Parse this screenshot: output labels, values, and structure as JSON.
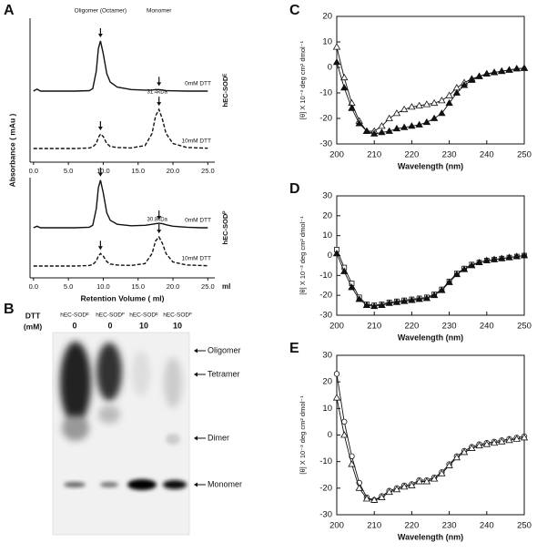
{
  "chart_data": [
    {
      "type": "line",
      "panel": "A",
      "ylabel": "Absorbance ( mAu )",
      "header_labels": [
        "Oligomer (Octamer)",
        "Monomer"
      ],
      "side_label": "hEC-SODᴱ",
      "peak_label": "31.4kDa",
      "x": [
        0,
        0.5,
        1,
        2,
        4,
        6,
        8,
        8.5,
        9,
        9.3,
        9.6,
        10,
        10.5,
        11,
        12,
        14,
        16,
        17,
        17.5,
        18,
        18.5,
        19,
        20,
        22,
        24,
        25
      ],
      "xlim": [
        -0.5,
        26
      ],
      "xticks": [
        {
          "value": 0,
          "label": "0.0"
        },
        {
          "value": 5,
          "label": "5.0"
        },
        {
          "value": 10,
          "label": "10.0"
        },
        {
          "value": 15,
          "label": "15.0"
        },
        {
          "value": 20,
          "label": "20.0"
        },
        {
          "value": 25,
          "label": "25.0"
        }
      ],
      "series": [
        {
          "label": "0mM DTT",
          "color": "#111111",
          "dash": false,
          "values": [
            0,
            4,
            0,
            0,
            0,
            0,
            1,
            5,
            40,
            85,
            100,
            75,
            35,
            18,
            8,
            3,
            2,
            2,
            3,
            3,
            2,
            1,
            0.5,
            0,
            0,
            0
          ]
        },
        {
          "label": "10mM DTT",
          "color": "#111111",
          "dash": true,
          "values": [
            0,
            0,
            0,
            0,
            0,
            0,
            1,
            3,
            10,
            22,
            29,
            24,
            10,
            4,
            2,
            1,
            6,
            30,
            65,
            78,
            58,
            30,
            10,
            2,
            1,
            0.5
          ]
        }
      ]
    },
    {
      "type": "line",
      "side_label": "hEC-SODᴾ",
      "peak_label": "30.8kDa",
      "xlabel": "Retention Volume ( ml)",
      "x_unit": "ml",
      "x": [
        0,
        0.5,
        1,
        2,
        4,
        6,
        8,
        8.5,
        9,
        9.3,
        9.6,
        10,
        10.5,
        11,
        12,
        14,
        16,
        17,
        17.5,
        18,
        18.5,
        19,
        20,
        22,
        24,
        25
      ],
      "xlim": [
        -0.5,
        26
      ],
      "xticks": [
        {
          "value": 0,
          "label": "0.0"
        },
        {
          "value": 5,
          "label": "5.0"
        },
        {
          "value": 10,
          "label": "10.0"
        },
        {
          "value": 15,
          "label": "15.0"
        },
        {
          "value": 20,
          "label": "20.0"
        },
        {
          "value": 25,
          "label": "25.0"
        }
      ],
      "series": [
        {
          "label": "0mM DTT",
          "color": "#111111",
          "dash": false,
          "values": [
            0,
            3,
            0,
            0,
            0,
            0,
            1,
            5,
            38,
            80,
            95,
            70,
            30,
            15,
            7,
            4,
            5,
            7,
            8,
            9,
            8,
            6,
            3,
            1,
            0,
            0
          ]
        },
        {
          "label": "10mM DTT",
          "color": "#111111",
          "dash": true,
          "values": [
            0,
            0,
            0,
            0,
            0,
            0,
            1,
            3,
            10,
            20,
            25,
            20,
            9,
            4,
            2,
            1,
            5,
            25,
            50,
            58,
            45,
            25,
            8,
            2,
            1,
            0.5
          ]
        }
      ]
    },
    {
      "type": "scatter-line",
      "panel": "C",
      "xlabel": "Wavelength (nm)",
      "ylabel": "[θ] X 10⁻³ deg cm² dmol⁻¹",
      "x": [
        200,
        202,
        204,
        206,
        208,
        210,
        212,
        214,
        216,
        218,
        220,
        222,
        224,
        226,
        228,
        230,
        232,
        234,
        236,
        238,
        240,
        242,
        244,
        246,
        248,
        250
      ],
      "xlim": [
        200,
        250
      ],
      "xticks": [
        200,
        210,
        220,
        230,
        240,
        250
      ],
      "ylim": [
        -30,
        20
      ],
      "yticks": [
        -30,
        -20,
        -10,
        0,
        10,
        20
      ],
      "series": [
        {
          "color": "#111111",
          "marker": "triangle",
          "filled": false,
          "values": [
            8,
            -4,
            -14,
            -21,
            -25,
            -25,
            -23,
            -20,
            -18,
            -16.5,
            -15.5,
            -15,
            -14.5,
            -14,
            -13,
            -11,
            -8,
            -6,
            -4.5,
            -3.5,
            -2.5,
            -2,
            -1.5,
            -1,
            -0.5,
            -0.3
          ]
        },
        {
          "color": "#111111",
          "marker": "triangle",
          "filled": true,
          "values": [
            2,
            -8,
            -16,
            -22,
            -25,
            -26,
            -25.5,
            -25,
            -24,
            -23.5,
            -23,
            -22.5,
            -21.5,
            -20,
            -18,
            -14,
            -10,
            -7,
            -5,
            -3.5,
            -2.5,
            -2,
            -1.5,
            -1,
            -0.5,
            -0.3
          ]
        }
      ]
    },
    {
      "type": "scatter-line",
      "panel": "D",
      "xlabel": "Wavelength (nm)",
      "ylabel": "[θ] X 10⁻³ deg cm² dmol⁻¹",
      "x": [
        200,
        202,
        204,
        206,
        208,
        210,
        212,
        214,
        216,
        218,
        220,
        222,
        224,
        226,
        228,
        230,
        232,
        234,
        236,
        238,
        240,
        242,
        244,
        246,
        248,
        250
      ],
      "xlim": [
        200,
        250
      ],
      "xticks": [
        200,
        210,
        220,
        230,
        240,
        250
      ],
      "ylim": [
        -30,
        30
      ],
      "yticks": [
        -30,
        -20,
        -10,
        0,
        10,
        20,
        30
      ],
      "series": [
        {
          "color": "#111111",
          "marker": "square",
          "filled": false,
          "values": [
            3,
            -6,
            -14,
            -21,
            -24.5,
            -25,
            -24.5,
            -23.5,
            -23,
            -22.5,
            -22,
            -21.5,
            -21,
            -19.5,
            -17,
            -13,
            -9,
            -6.5,
            -4.5,
            -3.5,
            -2.5,
            -2,
            -1.5,
            -1,
            -0.5,
            0
          ]
        },
        {
          "color": "#111111",
          "marker": "triangle",
          "filled": true,
          "values": [
            1,
            -8,
            -16,
            -22,
            -25,
            -25.5,
            -25,
            -24,
            -23.5,
            -23,
            -22.5,
            -22,
            -21.5,
            -20,
            -17.5,
            -13.5,
            -9.5,
            -7,
            -5,
            -3.5,
            -2.5,
            -2,
            -1.5,
            -1,
            -0.5,
            0
          ]
        }
      ]
    },
    {
      "type": "scatter-line",
      "panel": "E",
      "xlabel": "Wavelength (nm)",
      "ylabel": "[θ] X 10⁻³ deg cm² dmol⁻¹",
      "x": [
        200,
        202,
        204,
        206,
        208,
        210,
        212,
        214,
        216,
        218,
        220,
        222,
        224,
        226,
        228,
        230,
        232,
        234,
        236,
        238,
        240,
        242,
        244,
        246,
        248,
        250
      ],
      "xlim": [
        200,
        250
      ],
      "xticks": [
        200,
        210,
        220,
        230,
        240,
        250
      ],
      "ylim": [
        -30,
        30
      ],
      "yticks": [
        -30,
        -20,
        -10,
        0,
        10,
        20,
        30
      ],
      "series": [
        {
          "color": "#111111",
          "marker": "circle",
          "filled": false,
          "values": [
            23,
            5,
            -8,
            -18,
            -23.5,
            -24.5,
            -23,
            -21,
            -20,
            -19,
            -18.5,
            -17,
            -17,
            -16,
            -14,
            -11,
            -8,
            -6,
            -4.5,
            -3.5,
            -3,
            -2.5,
            -2,
            -1.5,
            -1,
            -0.5
          ]
        },
        {
          "color": "#111111",
          "marker": "triangle",
          "filled": false,
          "values": [
            14,
            0,
            -11,
            -20,
            -24,
            -24.5,
            -23.5,
            -21.5,
            -20.5,
            -19.5,
            -19,
            -17.5,
            -17.5,
            -16.5,
            -14.5,
            -11.5,
            -8.5,
            -6.5,
            -5,
            -4,
            -3.5,
            -3,
            -2.5,
            -2,
            -1.5,
            -1
          ]
        }
      ]
    }
  ],
  "gel": {
    "panel": "B",
    "dtt_label": "DTT",
    "dtt_unit": "(mM)",
    "lanes": [
      {
        "label": "hEC-SODᴱ",
        "dtt": "0"
      },
      {
        "label": "hEC-SODᴾ",
        "dtt": "0"
      },
      {
        "label": "hEC-SODᴱ",
        "dtt": "10"
      },
      {
        "label": "hEC-SODᴾ",
        "dtt": "10"
      }
    ],
    "bands": [
      "Oligomer",
      "Tetramer",
      "Dimer",
      "Monomer"
    ]
  }
}
